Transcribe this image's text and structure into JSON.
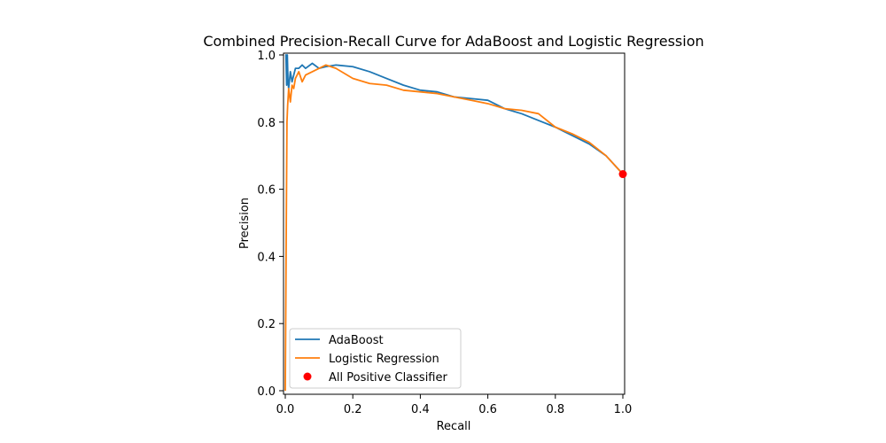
{
  "chart_data": {
    "type": "line",
    "title": "Combined Precision-Recall Curve for AdaBoost and Logistic Regression",
    "xlabel": "Recall",
    "ylabel": "Precision",
    "xlim": [
      0.0,
      1.0
    ],
    "ylim": [
      0.0,
      1.0
    ],
    "xticks": [
      "0.0",
      "0.2",
      "0.4",
      "0.6",
      "0.8",
      "1.0"
    ],
    "yticks": [
      "0.0",
      "0.2",
      "0.4",
      "0.6",
      "0.8",
      "1.0"
    ],
    "grid": false,
    "legend_position": "lower-left",
    "series": [
      {
        "name": "AdaBoost",
        "color": "#1f77b4",
        "kind": "line",
        "x": [
          0.0,
          0.002,
          0.004,
          0.005,
          0.006,
          0.008,
          0.01,
          0.015,
          0.02,
          0.03,
          0.04,
          0.05,
          0.06,
          0.08,
          0.1,
          0.12,
          0.15,
          0.2,
          0.25,
          0.3,
          0.35,
          0.4,
          0.45,
          0.5,
          0.55,
          0.6,
          0.65,
          0.7,
          0.75,
          0.8,
          0.85,
          0.9,
          0.95,
          1.0
        ],
        "y": [
          1.0,
          1.0,
          0.91,
          1.0,
          1.0,
          0.92,
          0.9,
          0.95,
          0.92,
          0.96,
          0.96,
          0.97,
          0.96,
          0.975,
          0.96,
          0.965,
          0.97,
          0.965,
          0.95,
          0.93,
          0.91,
          0.895,
          0.89,
          0.875,
          0.87,
          0.865,
          0.84,
          0.825,
          0.805,
          0.785,
          0.76,
          0.735,
          0.7,
          0.645
        ]
      },
      {
        "name": "Logistic Regression",
        "color": "#ff7f0e",
        "kind": "line",
        "x": [
          0.0,
          0.003,
          0.005,
          0.007,
          0.01,
          0.015,
          0.02,
          0.025,
          0.03,
          0.04,
          0.05,
          0.06,
          0.08,
          0.1,
          0.12,
          0.15,
          0.2,
          0.25,
          0.3,
          0.35,
          0.4,
          0.45,
          0.5,
          0.55,
          0.6,
          0.65,
          0.7,
          0.75,
          0.8,
          0.85,
          0.9,
          0.95,
          1.0
        ],
        "y": [
          0.0,
          0.5,
          0.8,
          0.85,
          0.9,
          0.86,
          0.91,
          0.9,
          0.93,
          0.95,
          0.92,
          0.94,
          0.95,
          0.96,
          0.97,
          0.96,
          0.93,
          0.915,
          0.91,
          0.895,
          0.89,
          0.885,
          0.875,
          0.865,
          0.855,
          0.84,
          0.835,
          0.825,
          0.785,
          0.765,
          0.74,
          0.7,
          0.645
        ]
      },
      {
        "name": "All Positive Classifier",
        "color": "#ff0000",
        "kind": "scatter",
        "x": [
          1.0
        ],
        "y": [
          0.645
        ]
      }
    ]
  }
}
